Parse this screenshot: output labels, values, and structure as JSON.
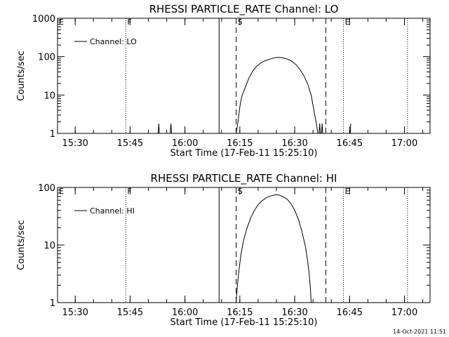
{
  "timestamp": "14-Oct-2021 11:51",
  "chart_data": [
    {
      "type": "line",
      "title": "RHESSI PARTICLE_RATE Channel: LO",
      "xlabel": "Start Time (17-Feb-11 15:25:10)",
      "ylabel": "Counts/sec",
      "yscale": "log",
      "ylim": [
        1,
        1000
      ],
      "yticks": [
        1,
        10,
        100,
        1000
      ],
      "ytick_labels": [
        "1",
        "10",
        "100",
        "1000"
      ],
      "xlim": [
        "15:25:10",
        "17:07:00"
      ],
      "xticks": [
        "15:30",
        "15:45",
        "16:00",
        "16:15",
        "16:30",
        "16:45",
        "17:00"
      ],
      "legend": {
        "position": "top-left",
        "entries": [
          "Channel: LO"
        ]
      },
      "markers": [
        {
          "label": "E",
          "time": "15:25:10",
          "style": "dotted"
        },
        {
          "label": "F",
          "time": "15:43:50",
          "style": "dotted"
        },
        {
          "label": "",
          "time": "16:09:20",
          "style": "solid"
        },
        {
          "label": "S",
          "time": "16:14:00",
          "style": "dashed"
        },
        {
          "label": "",
          "time": "16:38:30",
          "style": "dashed"
        },
        {
          "label": "E",
          "time": "16:43:20",
          "style": "dotted"
        },
        {
          "label": "",
          "time": "17:00:50",
          "style": "dotted"
        }
      ],
      "series": [
        {
          "name": "Channel: LO",
          "points": [
            [
              "15:52:40",
              1
            ],
            [
              "15:52:50",
              1.8
            ],
            [
              "15:53:00",
              1
            ],
            [
              "15:56:00",
              1
            ],
            [
              "15:56:10",
              1.8
            ],
            [
              "15:56:20",
              1
            ],
            [
              "16:14:00",
              1
            ],
            [
              "16:14:30",
              2
            ],
            [
              "16:15:00",
              5
            ],
            [
              "16:15:30",
              9
            ],
            [
              "16:16:30",
              16
            ],
            [
              "16:17:30",
              28
            ],
            [
              "16:18:30",
              42
            ],
            [
              "16:19:30",
              55
            ],
            [
              "16:20:30",
              66
            ],
            [
              "16:21:30",
              75
            ],
            [
              "16:22:30",
              82
            ],
            [
              "16:23:30",
              88
            ],
            [
              "16:24:30",
              93
            ],
            [
              "16:25:30",
              96
            ],
            [
              "16:26:30",
              94
            ],
            [
              "16:27:30",
              90
            ],
            [
              "16:28:30",
              83
            ],
            [
              "16:29:30",
              72
            ],
            [
              "16:30:30",
              60
            ],
            [
              "16:31:30",
              45
            ],
            [
              "16:32:30",
              32
            ],
            [
              "16:33:30",
              20
            ],
            [
              "16:34:30",
              10
            ],
            [
              "16:35:00",
              5.5
            ],
            [
              "16:35:30",
              3
            ],
            [
              "16:36:00",
              1.6
            ],
            [
              "16:36:20",
              1
            ],
            [
              "16:36:40",
              1
            ],
            [
              "16:36:50",
              1.8
            ],
            [
              "16:37:00",
              1
            ],
            [
              "16:37:20",
              1
            ],
            [
              "16:37:30",
              1.8
            ],
            [
              "16:37:40",
              1
            ],
            [
              "16:45:10",
              1
            ],
            [
              "16:45:20",
              1.8
            ]
          ]
        }
      ]
    },
    {
      "type": "line",
      "title": "RHESSI PARTICLE_RATE Channel: HI",
      "xlabel": "Start Time (17-Feb-11 15:25:10)",
      "ylabel": "Counts/sec",
      "yscale": "log",
      "ylim": [
        1,
        100
      ],
      "yticks": [
        1,
        10,
        100
      ],
      "ytick_labels": [
        "1",
        "10",
        "100"
      ],
      "xlim": [
        "15:25:10",
        "17:07:00"
      ],
      "xticks": [
        "15:30",
        "15:45",
        "16:00",
        "16:15",
        "16:30",
        "16:45",
        "17:00"
      ],
      "legend": {
        "position": "top-left",
        "entries": [
          "Channel: HI"
        ]
      },
      "markers": [
        {
          "label": "E",
          "time": "15:25:10",
          "style": "dotted"
        },
        {
          "label": "F",
          "time": "15:43:50",
          "style": "dotted"
        },
        {
          "label": "",
          "time": "16:09:20",
          "style": "solid"
        },
        {
          "label": "S",
          "time": "16:14:00",
          "style": "dashed"
        },
        {
          "label": "",
          "time": "16:38:30",
          "style": "dashed"
        },
        {
          "label": "E",
          "time": "16:43:20",
          "style": "dotted"
        },
        {
          "label": "",
          "time": "17:00:50",
          "style": "dotted"
        }
      ],
      "series": [
        {
          "name": "Channel: HI",
          "points": [
            [
              "16:14:00",
              1
            ],
            [
              "16:14:20",
              2
            ],
            [
              "16:14:50",
              4
            ],
            [
              "16:15:20",
              7
            ],
            [
              "16:16:00",
              12
            ],
            [
              "16:17:00",
              20
            ],
            [
              "16:18:00",
              30
            ],
            [
              "16:19:00",
              40
            ],
            [
              "16:20:00",
              50
            ],
            [
              "16:21:00",
              58
            ],
            [
              "16:22:00",
              65
            ],
            [
              "16:23:00",
              70
            ],
            [
              "16:24:00",
              73
            ],
            [
              "16:25:00",
              75
            ],
            [
              "16:26:00",
              73
            ],
            [
              "16:27:00",
              68
            ],
            [
              "16:28:00",
              62
            ],
            [
              "16:29:00",
              52
            ],
            [
              "16:30:00",
              40
            ],
            [
              "16:31:00",
              28
            ],
            [
              "16:32:00",
              17
            ],
            [
              "16:33:00",
              9
            ],
            [
              "16:33:30",
              5.5
            ],
            [
              "16:34:00",
              3
            ],
            [
              "16:34:20",
              1.6
            ],
            [
              "16:34:30",
              1
            ]
          ]
        }
      ]
    }
  ]
}
